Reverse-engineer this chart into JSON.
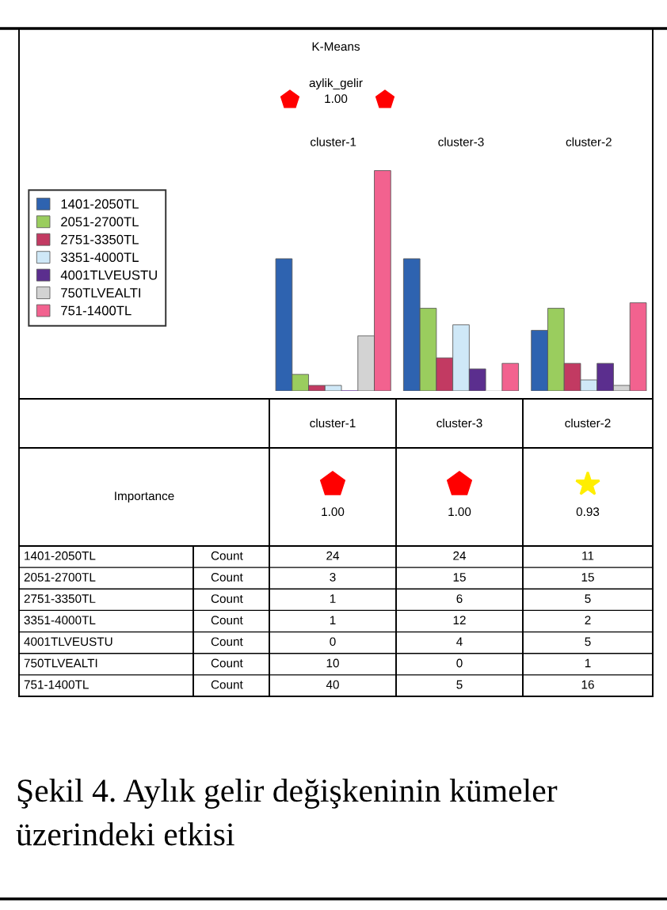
{
  "chart_data": {
    "type": "bar",
    "title": "K-Means",
    "subtitle": "aylik_gelir",
    "categories": [
      "cluster-1",
      "cluster-3",
      "cluster-2"
    ],
    "series": [
      {
        "name": "1401-2050TL",
        "color": "#2e63b0",
        "values": [
          24,
          24,
          11
        ]
      },
      {
        "name": "2051-2700TL",
        "color": "#9acd5e",
        "values": [
          3,
          15,
          15
        ]
      },
      {
        "name": "2751-3350TL",
        "color": "#c23a62",
        "values": [
          1,
          6,
          5
        ]
      },
      {
        "name": "3351-4000TL",
        "color": "#cfe8f7",
        "values": [
          1,
          12,
          2
        ]
      },
      {
        "name": "4001TLVEUSTU",
        "color": "#5b2e8e",
        "values": [
          0,
          4,
          5
        ]
      },
      {
        "name": "750TLVEALTI",
        "color": "#d3d3d3",
        "values": [
          10,
          0,
          1
        ]
      },
      {
        "name": "751-1400TL",
        "color": "#f2628f",
        "values": [
          40,
          5,
          16
        ]
      }
    ],
    "data_labels": true,
    "legend": "left",
    "annotations": [
      "1.00",
      "Importance",
      "1.00",
      "1.00",
      "0.93",
      "Count",
      "Şekil 4. Aylık gelir değişkeninin kümeler üzerindeki etkisi"
    ]
  }
}
